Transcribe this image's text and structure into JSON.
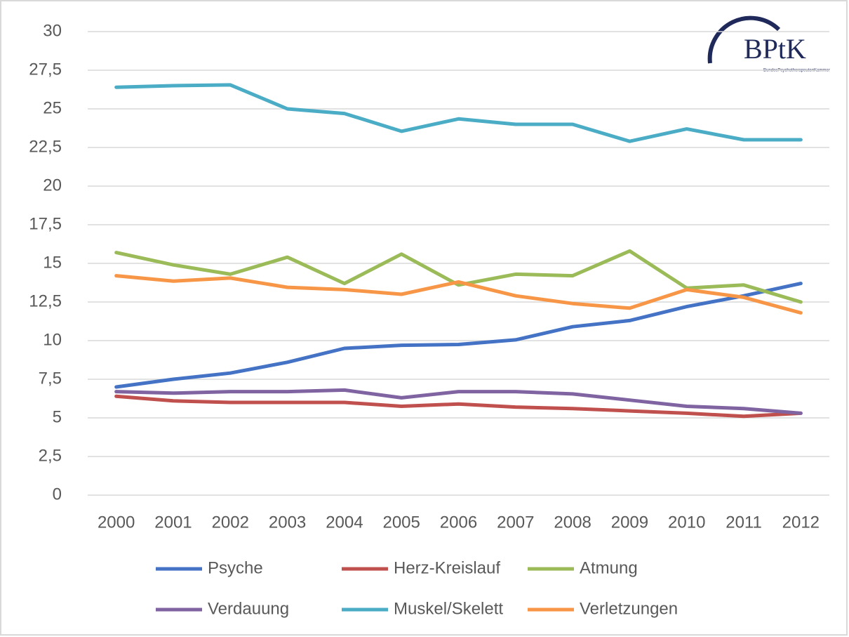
{
  "chart_data": {
    "type": "line",
    "logo": "BPtK",
    "logo_subtitle": "BundesPsychotherapeutenKammer",
    "categories": [
      "2000",
      "2001",
      "2002",
      "2003",
      "2004",
      "2005",
      "2006",
      "2007",
      "2008",
      "2009",
      "2010",
      "2011",
      "2012"
    ],
    "ylim": [
      0,
      30
    ],
    "yticks": [
      0,
      {
        "value": 2.5,
        "label": "2,5"
      },
      5,
      {
        "value": 7.5,
        "label": "7,5"
      },
      10,
      {
        "value": 12.5,
        "label": "12,5"
      },
      15,
      {
        "value": 17.5,
        "label": "17,5"
      },
      20,
      {
        "value": 22.5,
        "label": "22,5"
      },
      25,
      {
        "value": 27.5,
        "label": "27,5"
      },
      30
    ],
    "grid": true,
    "legend": "bottom",
    "series": [
      {
        "name": "Psyche",
        "color": "#4472c4",
        "values": [
          7.0,
          7.5,
          7.9,
          8.6,
          9.5,
          9.7,
          9.75,
          10.05,
          10.9,
          11.3,
          12.2,
          12.9,
          13.7
        ]
      },
      {
        "name": "Herz-Kreislauf",
        "color": "#c0504d",
        "values": [
          6.4,
          6.1,
          6.0,
          6.0,
          6.0,
          5.75,
          5.9,
          5.7,
          5.6,
          5.45,
          5.3,
          5.1,
          5.3
        ]
      },
      {
        "name": "Atmung",
        "color": "#9bbb59",
        "values": [
          15.7,
          14.9,
          14.3,
          15.4,
          13.7,
          15.6,
          13.6,
          14.3,
          14.2,
          15.8,
          13.4,
          13.6,
          12.5
        ]
      },
      {
        "name": "Verdauung",
        "color": "#8064a2",
        "values": [
          6.7,
          6.6,
          6.7,
          6.7,
          6.8,
          6.3,
          6.7,
          6.7,
          6.55,
          6.15,
          5.75,
          5.6,
          5.3
        ]
      },
      {
        "name": "Muskel/Skelett",
        "color": "#4bacc6",
        "values": [
          26.4,
          26.5,
          26.55,
          25.0,
          24.7,
          23.55,
          24.35,
          24.0,
          24.0,
          22.9,
          23.7,
          23.0,
          23.0
        ]
      },
      {
        "name": "Verletzungen",
        "color": "#f79646",
        "values": [
          14.2,
          13.85,
          14.05,
          13.45,
          13.3,
          13.0,
          13.8,
          12.9,
          12.4,
          12.1,
          13.3,
          12.8,
          11.8
        ]
      }
    ]
  }
}
